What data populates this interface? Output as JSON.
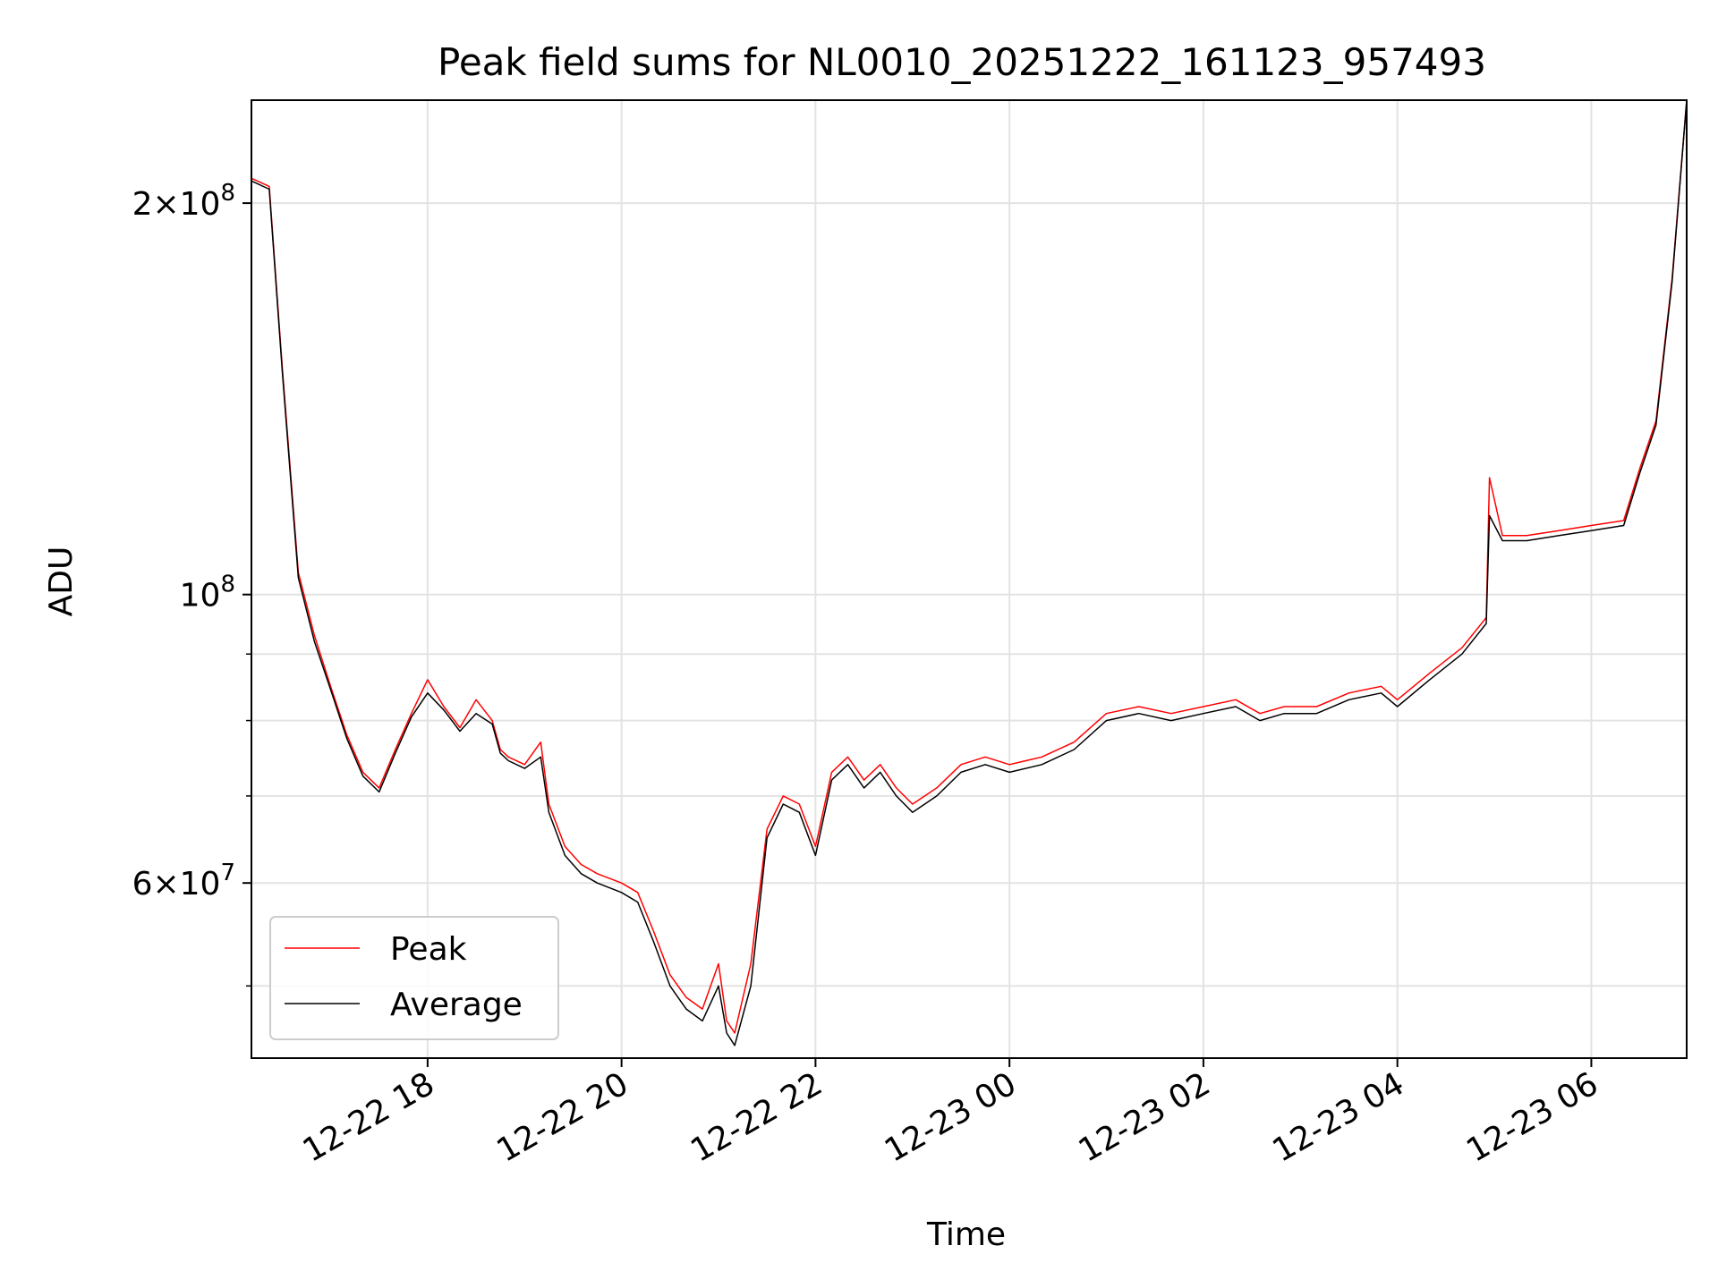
{
  "chart_data": {
    "type": "line",
    "title": "Peak field sums for NL0010_20251222_161123_957493",
    "xlabel": "Time",
    "ylabel": "ADU",
    "yscale": "log",
    "ylim": [
      44000000,
      240000000
    ],
    "xlim": [
      "2025-12-22T16:11",
      "2025-12-23T06:59"
    ],
    "grid": true,
    "legend_position": "lower-left",
    "x_ticks": [
      {
        "value": "2025-12-22T18:00",
        "label": "12-22 18"
      },
      {
        "value": "2025-12-22T20:00",
        "label": "12-22 20"
      },
      {
        "value": "2025-12-22T22:00",
        "label": "12-22 22"
      },
      {
        "value": "2025-12-23T00:00",
        "label": "12-23 00"
      },
      {
        "value": "2025-12-23T02:00",
        "label": "12-23 02"
      },
      {
        "value": "2025-12-23T04:00",
        "label": "12-23 04"
      },
      {
        "value": "2025-12-23T06:00",
        "label": "12-23 06"
      }
    ],
    "y_ticks": [
      {
        "value": 200000000,
        "mantissa": "2",
        "exponent": "8"
      },
      {
        "value": 100000000,
        "mantissa": "",
        "exponent": "8"
      },
      {
        "value": 60000000,
        "mantissa": "6",
        "exponent": "7"
      }
    ],
    "y_minor_ticks": [
      50000000,
      70000000,
      80000000,
      90000000
    ],
    "series": [
      {
        "name": "Peak",
        "color": "#ff0000",
        "x": [
          "2025-12-22T16:11",
          "2025-12-22T16:22",
          "2025-12-22T16:30",
          "2025-12-22T16:40",
          "2025-12-22T16:50",
          "2025-12-22T17:00",
          "2025-12-22T17:10",
          "2025-12-22T17:20",
          "2025-12-22T17:30",
          "2025-12-22T17:40",
          "2025-12-22T17:50",
          "2025-12-22T18:00",
          "2025-12-22T18:10",
          "2025-12-22T18:20",
          "2025-12-22T18:30",
          "2025-12-22T18:40",
          "2025-12-22T18:45",
          "2025-12-22T18:50",
          "2025-12-22T19:00",
          "2025-12-22T19:10",
          "2025-12-22T19:15",
          "2025-12-22T19:25",
          "2025-12-22T19:35",
          "2025-12-22T19:45",
          "2025-12-22T20:00",
          "2025-12-22T20:10",
          "2025-12-22T20:20",
          "2025-12-22T20:30",
          "2025-12-22T20:40",
          "2025-12-22T20:50",
          "2025-12-22T21:00",
          "2025-12-22T21:05",
          "2025-12-22T21:10",
          "2025-12-22T21:20",
          "2025-12-22T21:30",
          "2025-12-22T21:40",
          "2025-12-22T21:50",
          "2025-12-22T22:00",
          "2025-12-22T22:10",
          "2025-12-22T22:20",
          "2025-12-22T22:30",
          "2025-12-22T22:40",
          "2025-12-22T22:50",
          "2025-12-22T23:00",
          "2025-12-22T23:15",
          "2025-12-22T23:30",
          "2025-12-22T23:45",
          "2025-12-23T00:00",
          "2025-12-23T00:20",
          "2025-12-23T00:40",
          "2025-12-23T01:00",
          "2025-12-23T01:20",
          "2025-12-23T01:40",
          "2025-12-23T02:00",
          "2025-12-23T02:20",
          "2025-12-23T02:35",
          "2025-12-23T02:50",
          "2025-12-23T03:10",
          "2025-12-23T03:30",
          "2025-12-23T03:50",
          "2025-12-23T04:00",
          "2025-12-23T04:20",
          "2025-12-23T04:40",
          "2025-12-23T04:55",
          "2025-12-23T04:57",
          "2025-12-23T05:05",
          "2025-12-23T05:20",
          "2025-12-23T05:40",
          "2025-12-23T06:00",
          "2025-12-23T06:20",
          "2025-12-23T06:30",
          "2025-12-23T06:40",
          "2025-12-23T06:50",
          "2025-12-23T06:59"
        ],
        "y": [
          209000000,
          206000000,
          150000000,
          104000000,
          93000000,
          85000000,
          78000000,
          73000000,
          71000000,
          76000000,
          81000000,
          86000000,
          82000000,
          79000000,
          83000000,
          80000000,
          76000000,
          75000000,
          74000000,
          77000000,
          69000000,
          64000000,
          62000000,
          61000000,
          60000000,
          59000000,
          55000000,
          51000000,
          49000000,
          48000000,
          52000000,
          47000000,
          46000000,
          52000000,
          66000000,
          70000000,
          69000000,
          64000000,
          73000000,
          75000000,
          72000000,
          74000000,
          71000000,
          69000000,
          71000000,
          74000000,
          75000000,
          74000000,
          75000000,
          77000000,
          81000000,
          82000000,
          81000000,
          82000000,
          83000000,
          81000000,
          82000000,
          82000000,
          84000000,
          85000000,
          83000000,
          87000000,
          91000000,
          96000000,
          123000000,
          111000000,
          111000000,
          112000000,
          113000000,
          114000000,
          125000000,
          136000000,
          175000000,
          240000000
        ]
      },
      {
        "name": "Average",
        "color": "#000000",
        "x": [
          "2025-12-22T16:11",
          "2025-12-22T16:22",
          "2025-12-22T16:30",
          "2025-12-22T16:40",
          "2025-12-22T16:50",
          "2025-12-22T17:00",
          "2025-12-22T17:10",
          "2025-12-22T17:20",
          "2025-12-22T17:30",
          "2025-12-22T17:40",
          "2025-12-22T17:50",
          "2025-12-22T18:00",
          "2025-12-22T18:10",
          "2025-12-22T18:20",
          "2025-12-22T18:30",
          "2025-12-22T18:40",
          "2025-12-22T18:45",
          "2025-12-22T18:50",
          "2025-12-22T19:00",
          "2025-12-22T19:10",
          "2025-12-22T19:15",
          "2025-12-22T19:25",
          "2025-12-22T19:35",
          "2025-12-22T19:45",
          "2025-12-22T20:00",
          "2025-12-22T20:10",
          "2025-12-22T20:20",
          "2025-12-22T20:30",
          "2025-12-22T20:40",
          "2025-12-22T20:50",
          "2025-12-22T21:00",
          "2025-12-22T21:05",
          "2025-12-22T21:10",
          "2025-12-22T21:20",
          "2025-12-22T21:30",
          "2025-12-22T21:40",
          "2025-12-22T21:50",
          "2025-12-22T22:00",
          "2025-12-22T22:10",
          "2025-12-22T22:20",
          "2025-12-22T22:30",
          "2025-12-22T22:40",
          "2025-12-22T22:50",
          "2025-12-22T23:00",
          "2025-12-22T23:15",
          "2025-12-22T23:30",
          "2025-12-22T23:45",
          "2025-12-23T00:00",
          "2025-12-23T00:20",
          "2025-12-23T00:40",
          "2025-12-23T01:00",
          "2025-12-23T01:20",
          "2025-12-23T01:40",
          "2025-12-23T02:00",
          "2025-12-23T02:20",
          "2025-12-23T02:35",
          "2025-12-23T02:50",
          "2025-12-23T03:10",
          "2025-12-23T03:30",
          "2025-12-23T03:50",
          "2025-12-23T04:00",
          "2025-12-23T04:20",
          "2025-12-23T04:40",
          "2025-12-23T04:55",
          "2025-12-23T04:57",
          "2025-12-23T05:05",
          "2025-12-23T05:20",
          "2025-12-23T05:40",
          "2025-12-23T06:00",
          "2025-12-23T06:20",
          "2025-12-23T06:30",
          "2025-12-23T06:40",
          "2025-12-23T06:50",
          "2025-12-23T06:59"
        ],
        "y": [
          208000000,
          205000000,
          149000000,
          103000000,
          92000000,
          84500000,
          77500000,
          72500000,
          70500000,
          75500000,
          80500000,
          84000000,
          81500000,
          78500000,
          81000000,
          79500000,
          75500000,
          74500000,
          73500000,
          75000000,
          68000000,
          63000000,
          61000000,
          60000000,
          59000000,
          58000000,
          54000000,
          50000000,
          48000000,
          47000000,
          50000000,
          46000000,
          45000000,
          50000000,
          65000000,
          69000000,
          68000000,
          63000000,
          72000000,
          74000000,
          71000000,
          73000000,
          70000000,
          68000000,
          70000000,
          73000000,
          74000000,
          73000000,
          74000000,
          76000000,
          80000000,
          81000000,
          80000000,
          81000000,
          82000000,
          80000000,
          81000000,
          81000000,
          83000000,
          84000000,
          82000000,
          86000000,
          90000000,
          95000000,
          115000000,
          110000000,
          110000000,
          111000000,
          112000000,
          113000000,
          124000000,
          135000000,
          174000000,
          240000000
        ]
      }
    ]
  }
}
